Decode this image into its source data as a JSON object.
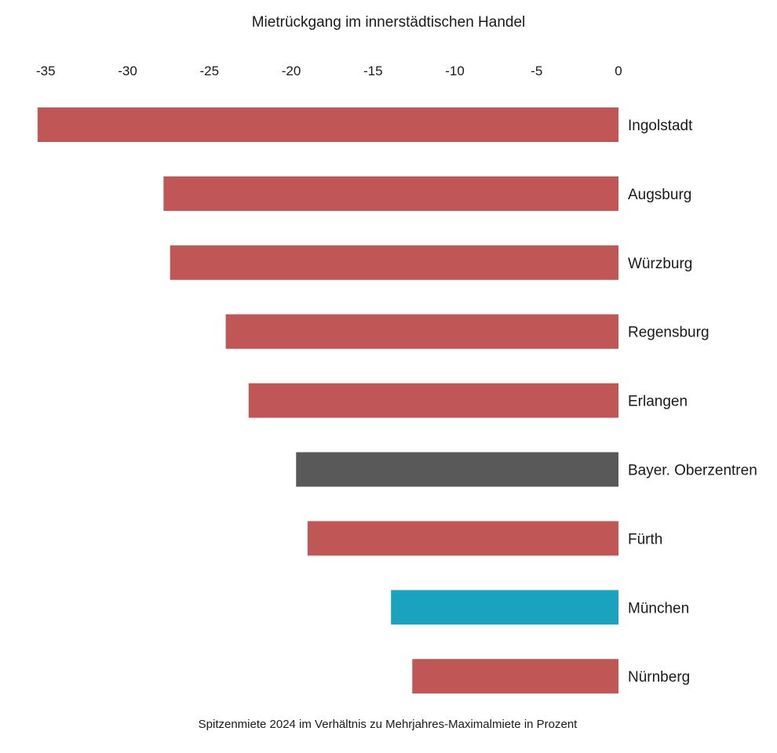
{
  "chart_data": {
    "type": "bar",
    "orientation": "horizontal",
    "title": "Mietrückgang im innerstädtischen Handel",
    "xlabel": "Spitzenmiete 2024 im Verhältnis zu Mehrjahres-Maximalmiete in Prozent",
    "ylabel": "",
    "xlim": [
      -35.5,
      0
    ],
    "x_ticks": [
      -35,
      -30,
      -25,
      -20,
      -15,
      -10,
      -5,
      0
    ],
    "x_tick_labels": [
      "-35",
      "-30",
      "-25",
      "-20",
      "-15",
      "-10",
      "-5",
      "0"
    ],
    "x_axis_position": "top",
    "grid": false,
    "legend": "none",
    "categories": [
      "Ingolstadt",
      "Augsburg",
      "Würzburg",
      "Regensburg",
      "Erlangen",
      "Bayer. Oberzentren",
      "Fürth",
      "München",
      "Nürnberg"
    ],
    "values": [
      -35.5,
      -27.8,
      -27.4,
      -24.0,
      -22.6,
      -19.7,
      -19.0,
      -13.9,
      -12.6
    ],
    "colors": [
      "#c05656",
      "#c05656",
      "#c05656",
      "#c05656",
      "#c05656",
      "#595959",
      "#c05656",
      "#1aa3bf",
      "#c05656"
    ]
  }
}
